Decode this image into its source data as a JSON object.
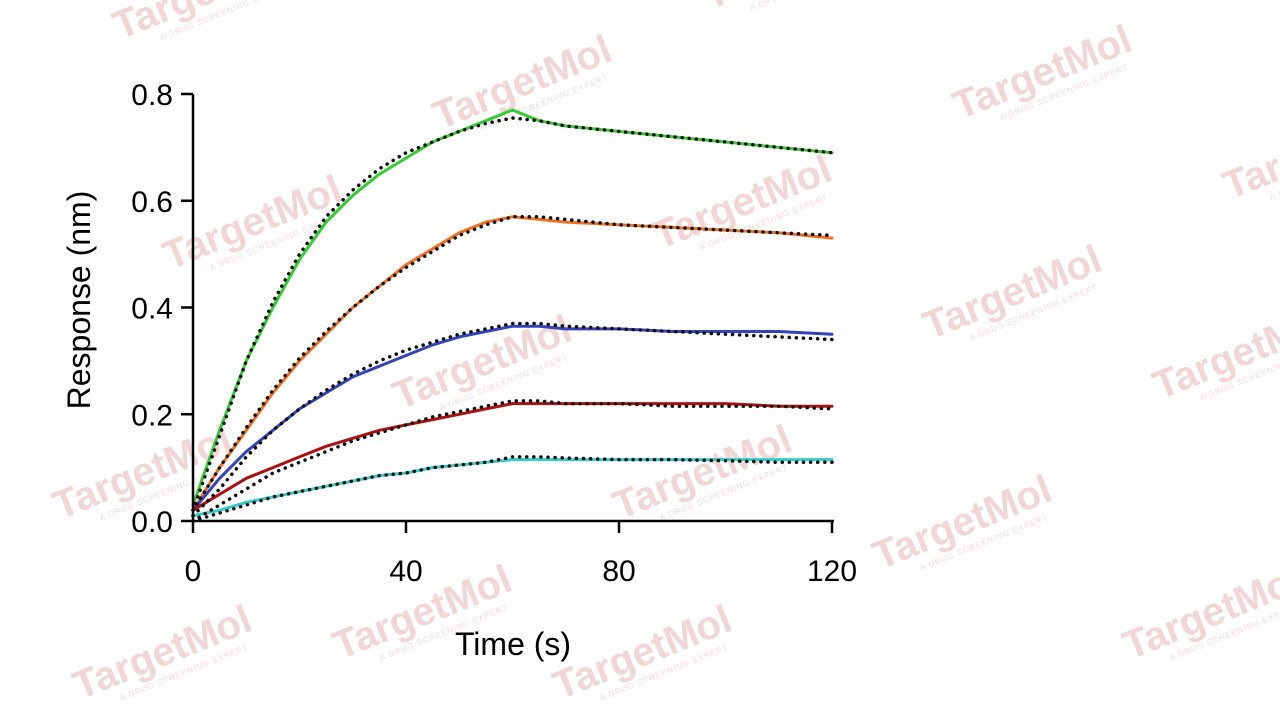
{
  "chart_data": {
    "type": "line",
    "xlabel": "Time (s)",
    "ylabel": "Response (nm)",
    "xlim": [
      0,
      120
    ],
    "ylim": [
      0,
      0.8
    ],
    "x_ticks": [
      "0",
      "40",
      "80",
      "120"
    ],
    "y_ticks": [
      "0.0",
      "0.2",
      "0.4",
      "0.6",
      "0.8"
    ],
    "grid": false,
    "legend": "none",
    "fit_style": "dotted-black",
    "series": [
      {
        "color": "#33cc33",
        "data": [
          [
            0,
            0.03
          ],
          [
            5,
            0.17
          ],
          [
            10,
            0.3
          ],
          [
            15,
            0.4
          ],
          [
            20,
            0.49
          ],
          [
            25,
            0.56
          ],
          [
            30,
            0.61
          ],
          [
            35,
            0.65
          ],
          [
            40,
            0.68
          ],
          [
            45,
            0.71
          ],
          [
            50,
            0.73
          ],
          [
            55,
            0.75
          ],
          [
            60,
            0.77
          ],
          [
            65,
            0.75
          ],
          [
            70,
            0.74
          ],
          [
            80,
            0.73
          ],
          [
            90,
            0.72
          ],
          [
            100,
            0.71
          ],
          [
            110,
            0.7
          ],
          [
            120,
            0.69
          ]
        ],
        "fit": [
          [
            0,
            0.02
          ],
          [
            5,
            0.16
          ],
          [
            10,
            0.3
          ],
          [
            15,
            0.41
          ],
          [
            20,
            0.5
          ],
          [
            25,
            0.57
          ],
          [
            30,
            0.62
          ],
          [
            35,
            0.66
          ],
          [
            40,
            0.69
          ],
          [
            45,
            0.71
          ],
          [
            50,
            0.73
          ],
          [
            55,
            0.745
          ],
          [
            60,
            0.755
          ],
          [
            65,
            0.75
          ],
          [
            70,
            0.74
          ],
          [
            80,
            0.73
          ],
          [
            90,
            0.72
          ],
          [
            100,
            0.71
          ],
          [
            110,
            0.7
          ],
          [
            120,
            0.69
          ]
        ]
      },
      {
        "color": "#f07020",
        "data": [
          [
            0,
            0.02
          ],
          [
            5,
            0.1
          ],
          [
            10,
            0.17
          ],
          [
            15,
            0.24
          ],
          [
            20,
            0.3
          ],
          [
            25,
            0.35
          ],
          [
            30,
            0.4
          ],
          [
            35,
            0.44
          ],
          [
            40,
            0.48
          ],
          [
            45,
            0.51
          ],
          [
            50,
            0.54
          ],
          [
            55,
            0.56
          ],
          [
            60,
            0.57
          ],
          [
            65,
            0.565
          ],
          [
            70,
            0.56
          ],
          [
            80,
            0.555
          ],
          [
            90,
            0.55
          ],
          [
            100,
            0.545
          ],
          [
            110,
            0.54
          ],
          [
            120,
            0.53
          ]
        ],
        "fit": [
          [
            0,
            0.02
          ],
          [
            5,
            0.1
          ],
          [
            10,
            0.175
          ],
          [
            15,
            0.245
          ],
          [
            20,
            0.305
          ],
          [
            25,
            0.355
          ],
          [
            30,
            0.4
          ],
          [
            35,
            0.44
          ],
          [
            40,
            0.475
          ],
          [
            45,
            0.505
          ],
          [
            50,
            0.535
          ],
          [
            55,
            0.555
          ],
          [
            60,
            0.57
          ],
          [
            65,
            0.57
          ],
          [
            70,
            0.565
          ],
          [
            80,
            0.555
          ],
          [
            90,
            0.55
          ],
          [
            100,
            0.545
          ],
          [
            110,
            0.54
          ],
          [
            120,
            0.535
          ]
        ]
      },
      {
        "color": "#3344bb",
        "data": [
          [
            0,
            0.02
          ],
          [
            5,
            0.08
          ],
          [
            10,
            0.13
          ],
          [
            15,
            0.17
          ],
          [
            20,
            0.21
          ],
          [
            25,
            0.24
          ],
          [
            30,
            0.27
          ],
          [
            35,
            0.29
          ],
          [
            40,
            0.31
          ],
          [
            45,
            0.33
          ],
          [
            50,
            0.345
          ],
          [
            55,
            0.355
          ],
          [
            60,
            0.365
          ],
          [
            65,
            0.365
          ],
          [
            70,
            0.36
          ],
          [
            80,
            0.36
          ],
          [
            90,
            0.355
          ],
          [
            100,
            0.355
          ],
          [
            110,
            0.355
          ],
          [
            120,
            0.35
          ]
        ],
        "fit": [
          [
            0,
            0.01
          ],
          [
            5,
            0.06
          ],
          [
            10,
            0.12
          ],
          [
            15,
            0.17
          ],
          [
            20,
            0.21
          ],
          [
            25,
            0.245
          ],
          [
            30,
            0.275
          ],
          [
            35,
            0.3
          ],
          [
            40,
            0.32
          ],
          [
            45,
            0.335
          ],
          [
            50,
            0.35
          ],
          [
            55,
            0.36
          ],
          [
            60,
            0.37
          ],
          [
            65,
            0.37
          ],
          [
            70,
            0.365
          ],
          [
            80,
            0.36
          ],
          [
            90,
            0.355
          ],
          [
            100,
            0.35
          ],
          [
            110,
            0.345
          ],
          [
            120,
            0.34
          ]
        ]
      },
      {
        "color": "#aa1111",
        "data": [
          [
            0,
            0.02
          ],
          [
            5,
            0.05
          ],
          [
            10,
            0.08
          ],
          [
            15,
            0.1
          ],
          [
            20,
            0.12
          ],
          [
            25,
            0.14
          ],
          [
            30,
            0.155
          ],
          [
            35,
            0.17
          ],
          [
            40,
            0.18
          ],
          [
            45,
            0.19
          ],
          [
            50,
            0.2
          ],
          [
            55,
            0.21
          ],
          [
            60,
            0.22
          ],
          [
            65,
            0.22
          ],
          [
            70,
            0.22
          ],
          [
            80,
            0.22
          ],
          [
            90,
            0.22
          ],
          [
            100,
            0.22
          ],
          [
            110,
            0.215
          ],
          [
            120,
            0.215
          ]
        ],
        "fit": [
          [
            0,
            0.0
          ],
          [
            5,
            0.03
          ],
          [
            10,
            0.06
          ],
          [
            15,
            0.09
          ],
          [
            20,
            0.11
          ],
          [
            25,
            0.13
          ],
          [
            30,
            0.15
          ],
          [
            35,
            0.165
          ],
          [
            40,
            0.18
          ],
          [
            45,
            0.195
          ],
          [
            50,
            0.205
          ],
          [
            55,
            0.215
          ],
          [
            60,
            0.225
          ],
          [
            65,
            0.225
          ],
          [
            70,
            0.22
          ],
          [
            80,
            0.22
          ],
          [
            90,
            0.215
          ],
          [
            100,
            0.215
          ],
          [
            110,
            0.215
          ],
          [
            120,
            0.21
          ]
        ]
      },
      {
        "color": "#33cccc",
        "data": [
          [
            0,
            0.01
          ],
          [
            5,
            0.02
          ],
          [
            10,
            0.035
          ],
          [
            15,
            0.045
          ],
          [
            20,
            0.055
          ],
          [
            25,
            0.065
          ],
          [
            30,
            0.075
          ],
          [
            35,
            0.085
          ],
          [
            40,
            0.09
          ],
          [
            45,
            0.1
          ],
          [
            50,
            0.105
          ],
          [
            55,
            0.11
          ],
          [
            60,
            0.115
          ],
          [
            65,
            0.115
          ],
          [
            70,
            0.115
          ],
          [
            80,
            0.115
          ],
          [
            90,
            0.115
          ],
          [
            100,
            0.115
          ],
          [
            110,
            0.115
          ],
          [
            120,
            0.115
          ]
        ],
        "fit": [
          [
            0,
            0.0
          ],
          [
            5,
            0.015
          ],
          [
            10,
            0.03
          ],
          [
            15,
            0.045
          ],
          [
            20,
            0.055
          ],
          [
            25,
            0.065
          ],
          [
            30,
            0.075
          ],
          [
            35,
            0.085
          ],
          [
            40,
            0.09
          ],
          [
            45,
            0.1
          ],
          [
            50,
            0.105
          ],
          [
            55,
            0.11
          ],
          [
            60,
            0.12
          ],
          [
            65,
            0.12
          ],
          [
            70,
            0.118
          ],
          [
            80,
            0.115
          ],
          [
            90,
            0.115
          ],
          [
            100,
            0.113
          ],
          [
            110,
            0.11
          ],
          [
            120,
            0.11
          ]
        ]
      }
    ]
  },
  "watermark": {
    "brand": "TargetMol",
    "tagline": "A DRUG SCREENING EXPERT",
    "color": "#e9b6b6"
  }
}
